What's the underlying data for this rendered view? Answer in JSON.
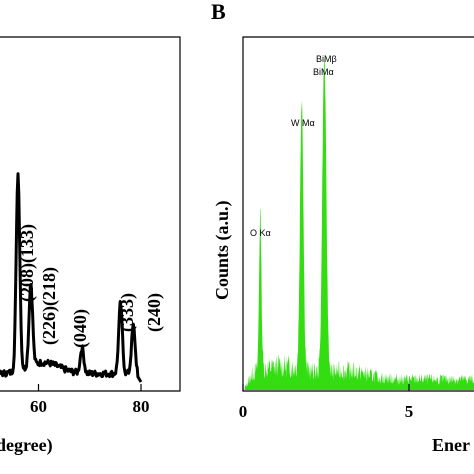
{
  "chart_data": [
    {
      "type": "line",
      "panel": "",
      "xlabel": "degree)",
      "ylabel": "",
      "xticks": [
        60,
        80
      ],
      "xtick_labels": [
        "60",
        "80"
      ],
      "xlim": [
        38,
        88
      ],
      "color": "#000000",
      "peaks": [
        {
          "label": "(208)(133)",
          "x": 56,
          "height": 0.62
        },
        {
          "label": "(226)(218)",
          "x": 58.5,
          "height": 0.26
        },
        {
          "label": "(040)",
          "x": 68.5,
          "height": 0.08
        },
        {
          "label": "(333)",
          "x": 76,
          "height": 0.22
        },
        {
          "label": "(240)",
          "x": 78.5,
          "height": 0.15
        }
      ]
    },
    {
      "type": "area",
      "panel": "B",
      "xlabel": "Ener",
      "ylabel": "Counts (a.u.)",
      "xticks": [
        0,
        5
      ],
      "xtick_labels": [
        "0",
        "5"
      ],
      "xlim": [
        0,
        7
      ],
      "color": "#33dd11",
      "peaks": [
        {
          "label": "O Kα",
          "x": 0.52,
          "height": 0.5
        },
        {
          "label": "W Mα",
          "x": 1.77,
          "height": 0.87
        },
        {
          "label": "Bi Mβ",
          "x": 2.45,
          "height": 1.0
        },
        {
          "label": "Bi Mα",
          "x": 2.45,
          "height": 1.0
        }
      ],
      "labels": [
        "O Kα",
        "W Mα",
        "BiMβ",
        "BiMα"
      ]
    }
  ]
}
